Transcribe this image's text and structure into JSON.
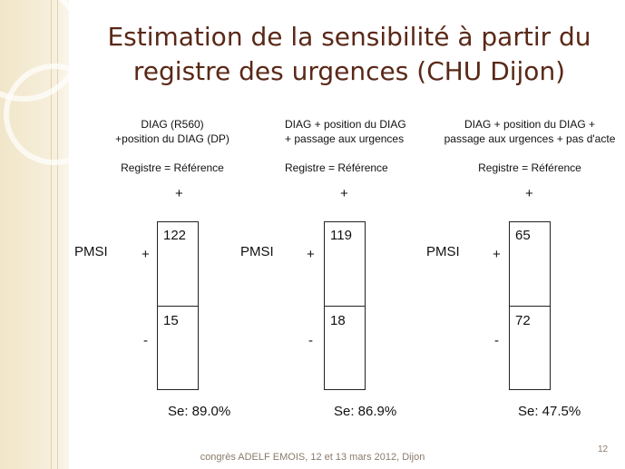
{
  "slide": {
    "title_line1": "Estimation de la sensibilité à partir du",
    "title_line2": "registre des urgences (CHU Dijon)",
    "footer": "congrès ADELF EMOIS, 12 et 13 mars 2012, Dijon",
    "page_number": "12"
  },
  "tables": [
    {
      "header_line1": "DIAG (R560)",
      "header_line2": "+position du DIAG (DP)",
      "reference": "Registre = Référence",
      "ref_plus": "+",
      "row_label": "PMSI",
      "plus_sign": "+",
      "minus_sign": "-",
      "value_plus": "122",
      "value_minus": "15",
      "sensitivity": "Se: 89.0%"
    },
    {
      "header_line1": "DIAG + position du DIAG",
      "header_line2": "+ passage aux urgences",
      "reference": "Registre = Référence",
      "ref_plus": "+",
      "row_label": "PMSI",
      "plus_sign": "+",
      "minus_sign": "-",
      "value_plus": "119",
      "value_minus": "18",
      "sensitivity": "Se: 86.9%"
    },
    {
      "header_line1": "DIAG + position du DIAG +",
      "header_line2": "passage aux urgences + pas d'acte",
      "reference": "Registre = Référence",
      "ref_plus": "+",
      "row_label": "PMSI",
      "plus_sign": "+",
      "minus_sign": "-",
      "value_plus": "65",
      "value_minus": "72",
      "sensitivity": "Se: 47.5%"
    }
  ]
}
